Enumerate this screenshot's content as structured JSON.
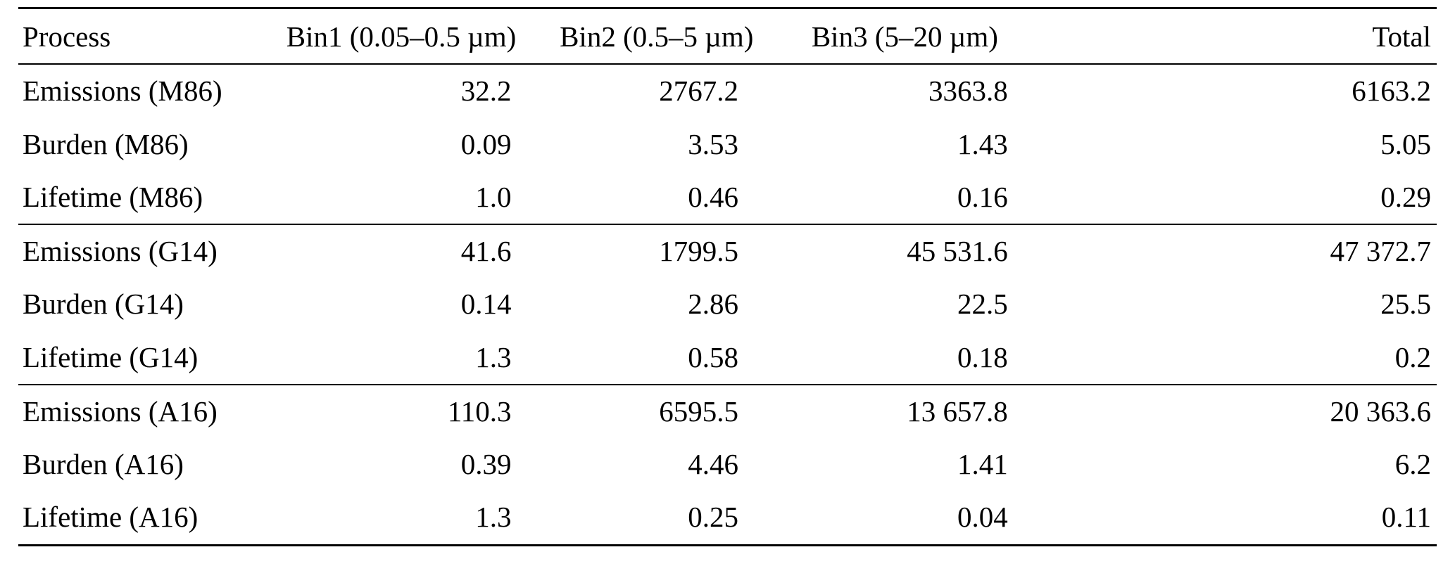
{
  "table": {
    "columns": [
      "Process",
      "Bin1 (0.05–0.5 µm)",
      "Bin2 (0.5–5 µm)",
      "Bin3 (5–20 µm)",
      "Total"
    ],
    "groups": [
      {
        "name": "M86",
        "rows": [
          {
            "label": "Emissions (M86)",
            "values": [
              "32.2",
              "2767.2",
              "3363.8",
              "6163.2"
            ]
          },
          {
            "label": "Burden (M86)",
            "values": [
              "0.09",
              "3.53",
              "1.43",
              "5.05"
            ]
          },
          {
            "label": "Lifetime (M86)",
            "values": [
              "1.0",
              "0.46",
              "0.16",
              "0.29"
            ]
          }
        ]
      },
      {
        "name": "G14",
        "rows": [
          {
            "label": "Emissions (G14)",
            "values": [
              "41.6",
              "1799.5",
              "45 531.6",
              "47 372.7"
            ]
          },
          {
            "label": "Burden (G14)",
            "values": [
              "0.14",
              "2.86",
              "22.5",
              "25.5"
            ]
          },
          {
            "label": "Lifetime (G14)",
            "values": [
              "1.3",
              "0.58",
              "0.18",
              "0.2"
            ]
          }
        ]
      },
      {
        "name": "A16",
        "rows": [
          {
            "label": "Emissions (A16)",
            "values": [
              "110.3",
              "6595.5",
              "13 657.8",
              "20 363.6"
            ]
          },
          {
            "label": "Burden (A16)",
            "values": [
              "0.39",
              "4.46",
              "1.41",
              "6.2"
            ]
          },
          {
            "label": "Lifetime (A16)",
            "values": [
              "1.3",
              "0.25",
              "0.04",
              "0.11"
            ]
          }
        ]
      }
    ]
  }
}
